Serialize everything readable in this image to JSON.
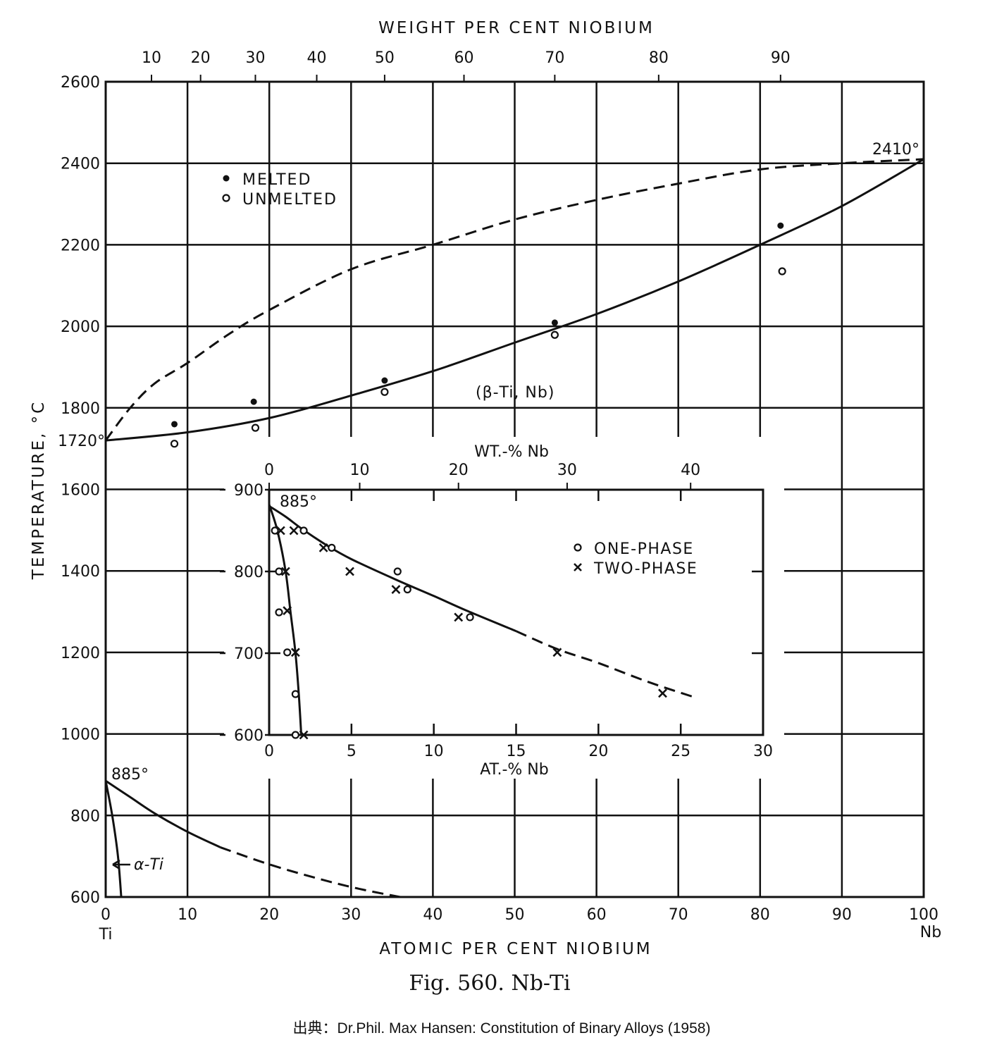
{
  "chart_data": [
    {
      "type": "scatter",
      "title": "WEIGHT PER CENT NIOBIUM",
      "xlabel": "ATOMIC PER CENT NIOBIUM",
      "ylabel": "TEMPERATURE, °C",
      "xlim": [
        0,
        100
      ],
      "ylim": [
        600,
        2600
      ],
      "grid": true,
      "x_ticks": [
        "0",
        "10",
        "20",
        "30",
        "40",
        "50",
        "60",
        "70",
        "80",
        "90",
        "100"
      ],
      "x_end_labels": {
        "left": "Ti",
        "right": "Nb"
      },
      "y_ticks": [
        "600",
        "800",
        "1000",
        "1200",
        "1400",
        "1600",
        "1800",
        "2000",
        "2200",
        "2400",
        "2600"
      ],
      "top_axis": {
        "labels": [
          "10",
          "20",
          "30",
          "40",
          "50",
          "60",
          "70",
          "80",
          "90"
        ],
        "at_percent_positions": [
          5.6,
          11.6,
          18.3,
          25.8,
          34.1,
          43.8,
          54.9,
          67.6,
          82.5
        ]
      },
      "legend": {
        "placement": "top-left",
        "entries": [
          "MELTED",
          "UNMELTED"
        ]
      },
      "series": [
        {
          "name": "MELTED",
          "marker": "filled-circle",
          "points": [
            [
              8.4,
              1760
            ],
            [
              18.1,
              1815
            ],
            [
              34.1,
              1867
            ],
            [
              54.9,
              2009
            ],
            [
              82.5,
              2247
            ]
          ]
        },
        {
          "name": "UNMELTED",
          "marker": "open-circle",
          "points": [
            [
              8.4,
              1712
            ],
            [
              18.3,
              1751
            ],
            [
              34.1,
              1839
            ],
            [
              54.9,
              1979
            ],
            [
              82.7,
              2135
            ]
          ]
        }
      ],
      "curves": [
        {
          "name": "solidus",
          "style": "solid",
          "points": [
            [
              0,
              1720
            ],
            [
              10,
              1740
            ],
            [
              20,
              1775
            ],
            [
              30,
              1830
            ],
            [
              40,
              1890
            ],
            [
              50,
              1960
            ],
            [
              60,
              2030
            ],
            [
              70,
              2110
            ],
            [
              80,
              2200
            ],
            [
              90,
              2295
            ],
            [
              100,
              2410
            ]
          ]
        },
        {
          "name": "liquidus",
          "style": "dashed",
          "points": [
            [
              0,
              1720
            ],
            [
              3,
              1800
            ],
            [
              6,
              1860
            ],
            [
              10,
              1910
            ],
            [
              15,
              1980
            ],
            [
              20,
              2040
            ],
            [
              30,
              2140
            ],
            [
              40,
              2200
            ],
            [
              50,
              2262
            ],
            [
              60,
              2310
            ],
            [
              70,
              2350
            ],
            [
              80,
              2385
            ],
            [
              90,
              2400
            ],
            [
              100,
              2410
            ]
          ]
        },
        {
          "name": "beta-transus",
          "style": "solid",
          "points": [
            [
              0,
              885
            ],
            [
              3,
              845
            ],
            [
              6,
              805
            ],
            [
              10,
              760
            ],
            [
              14,
              722
            ]
          ]
        },
        {
          "name": "beta-transus-extrapolated",
          "style": "dashed",
          "points": [
            [
              14,
              722
            ],
            [
              20,
              680
            ],
            [
              26,
              645
            ],
            [
              31,
              620
            ],
            [
              36,
              600
            ]
          ]
        },
        {
          "name": "alpha-boundary",
          "style": "solid",
          "points": [
            [
              0,
              885
            ],
            [
              0.8,
              800
            ],
            [
              1.5,
              700
            ],
            [
              1.9,
              600
            ]
          ]
        }
      ],
      "annotations": [
        "2410°",
        "1720°",
        "885°",
        "(β-Ti, Nb)",
        "α-Ti"
      ]
    },
    {
      "type": "scatter",
      "title": "WT.-% Nb",
      "xlabel": "AT.-% Nb",
      "xlim": [
        0,
        30
      ],
      "ylim": [
        600,
        900
      ],
      "x_ticks": [
        "0",
        "5",
        "10",
        "15",
        "20",
        "25",
        "30"
      ],
      "y_ticks": [
        "600",
        "700",
        "800",
        "900"
      ],
      "top_axis": {
        "labels": [
          "0",
          "10",
          "20",
          "30",
          "40"
        ],
        "at_percent_positions": [
          0,
          5.5,
          11.5,
          18.1,
          25.6
        ]
      },
      "legend": {
        "placement": "top-right",
        "entries": [
          "ONE-PHASE",
          "TWO-PHASE"
        ]
      },
      "series": [
        {
          "name": "ONE-PHASE",
          "marker": "open-circle",
          "points": [
            [
              0.35,
              850
            ],
            [
              2.1,
              850
            ],
            [
              3.8,
              829
            ],
            [
              7.8,
              800
            ],
            [
              8.4,
              778
            ],
            [
              12.2,
              744
            ],
            [
              0.6,
              800
            ],
            [
              0.6,
              750
            ],
            [
              1.1,
              701
            ],
            [
              1.6,
              650
            ],
            [
              1.6,
              600
            ]
          ]
        },
        {
          "name": "TWO-PHASE",
          "marker": "x",
          "points": [
            [
              0.7,
              850
            ],
            [
              1.5,
              850
            ],
            [
              3.3,
              829
            ],
            [
              4.9,
              800
            ],
            [
              7.7,
              778
            ],
            [
              11.5,
              744
            ],
            [
              17.5,
              701
            ],
            [
              23.9,
              651
            ],
            [
              1.0,
              800
            ],
            [
              1.1,
              752
            ],
            [
              1.6,
              701
            ],
            [
              2.1,
              600
            ]
          ]
        }
      ],
      "curves": [
        {
          "name": "beta-transus",
          "style": "solid",
          "points": [
            [
              0,
              880
            ],
            [
              1,
              867
            ],
            [
              2,
              852
            ],
            [
              3.5,
              832
            ],
            [
              5,
              815
            ],
            [
              7.7,
              790
            ],
            [
              10,
              770
            ],
            [
              12,
              752
            ],
            [
              15,
              727
            ]
          ]
        },
        {
          "name": "beta-transus-extrapolated",
          "style": "dashed",
          "points": [
            [
              15,
              727
            ],
            [
              17.5,
              705
            ],
            [
              20,
              688
            ],
            [
              23,
              665
            ],
            [
              26,
              645
            ]
          ]
        },
        {
          "name": "alpha-boundary",
          "style": "solid",
          "points": [
            [
              0,
              882
            ],
            [
              0.5,
              850
            ],
            [
              1.0,
              800
            ],
            [
              1.3,
              750
            ],
            [
              1.6,
              700
            ],
            [
              1.8,
              650
            ],
            [
              1.95,
              600
            ]
          ]
        }
      ],
      "annotations": [
        "885°"
      ]
    }
  ],
  "caption": "Fig. 560. Nb-Ti",
  "source": "出典：Dr.Phil. Max Hansen: Constitution of Binary Alloys (1958)"
}
